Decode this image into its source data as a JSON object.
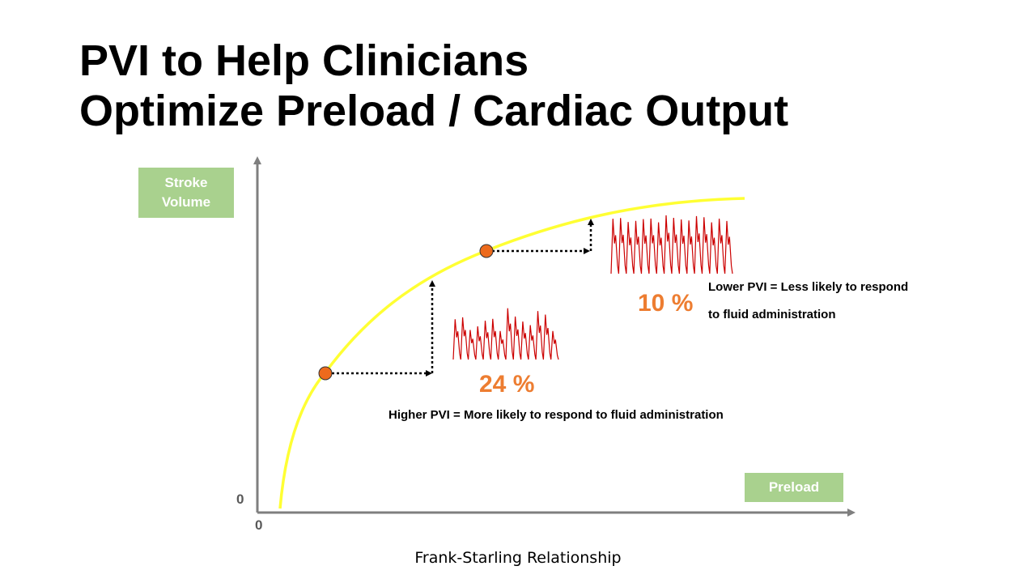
{
  "title": {
    "line1": "PVI to Help Clinicians",
    "line2": "Optimize Preload / Cardiac Output"
  },
  "axes": {
    "y_label": "Stroke Volume",
    "x_label": "Preload",
    "y_zero": "0",
    "x_zero": "0"
  },
  "points": {
    "high": {
      "percent": "24 %",
      "description": "Higher PVI = More likely to respond to fluid administration"
    },
    "low": {
      "percent": "10 %",
      "description_line1": "Lower PVI = Less likely to respond",
      "description_line2": "to fluid administration"
    }
  },
  "caption": "Frank-Starling Relationship",
  "colors": {
    "curve": "#ffff33",
    "point": "#ed6a1c",
    "waveform": "#cc0000",
    "label_box": "#a9d18e",
    "percent": "#ed7d31",
    "axis": "#7f7f7f"
  }
}
